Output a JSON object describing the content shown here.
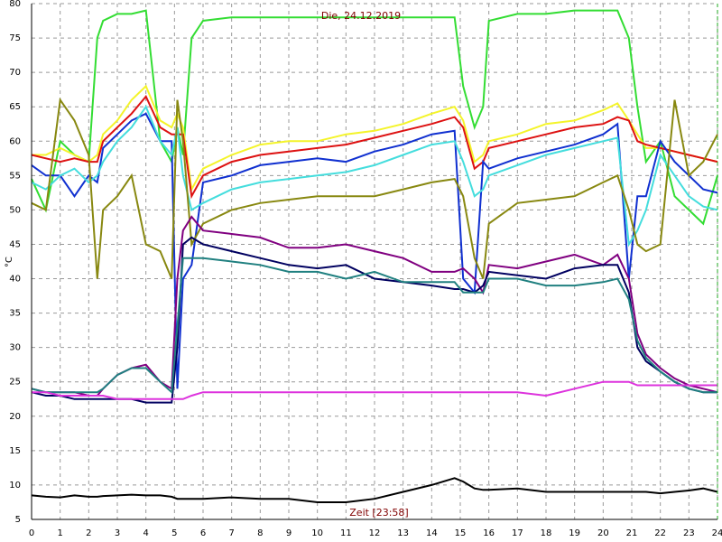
{
  "chart_data": {
    "type": "line",
    "title": "Die, 24.12.2019",
    "x_label": "Zeit [23:58]",
    "y_label": "°C",
    "x": [
      0,
      0.5,
      1,
      1.5,
      2,
      2.3,
      2.5,
      3,
      3.5,
      4,
      4.5,
      4.9,
      5.1,
      5.3,
      5.6,
      6,
      7,
      8,
      9,
      10,
      11,
      12,
      13,
      14,
      14.8,
      15.1,
      15.5,
      15.8,
      16,
      17,
      18,
      19,
      20,
      20.5,
      20.9,
      21.2,
      21.5,
      22,
      22.5,
      23,
      23.5,
      24
    ],
    "xlim": [
      0,
      24
    ],
    "xticks": [
      0,
      1,
      2,
      3,
      4,
      5,
      6,
      7,
      8,
      9,
      10,
      11,
      12,
      13,
      14,
      15,
      16,
      17,
      18,
      19,
      20,
      21,
      22,
      23,
      24
    ],
    "ylim": [
      5,
      80
    ],
    "yticks": [
      5,
      10,
      15,
      20,
      25,
      30,
      35,
      40,
      45,
      50,
      55,
      60,
      65,
      70,
      75,
      80
    ],
    "grid": true,
    "series": [
      {
        "color": "#33dd33",
        "values": [
          54.5,
          50,
          60,
          58,
          57,
          75,
          77.5,
          78.5,
          78.5,
          79,
          60,
          57,
          62,
          58,
          75,
          77.5,
          78,
          78,
          78,
          78,
          78,
          78,
          78,
          78,
          78,
          68,
          62,
          65,
          77.5,
          78.5,
          78.5,
          79,
          79,
          79,
          75,
          65,
          57,
          60,
          52,
          50,
          48,
          55
        ]
      },
      {
        "color": "#f4f42a",
        "values": [
          58,
          58,
          59,
          58,
          57,
          58,
          61,
          63,
          66,
          68,
          63,
          62,
          64,
          62,
          53,
          56,
          58,
          59.5,
          60,
          60,
          61,
          61.5,
          62.5,
          64,
          65,
          63,
          57,
          58,
          60,
          61,
          62.5,
          63,
          64.5,
          65.5,
          63,
          61,
          59,
          59,
          58.5,
          58,
          57.5,
          57
        ]
      },
      {
        "color": "#dd1111",
        "values": [
          58,
          57.5,
          57,
          57.5,
          57,
          57,
          60,
          62,
          64,
          66.5,
          62,
          61,
          61,
          61,
          52,
          55,
          57,
          58,
          58.5,
          59,
          59.5,
          60.5,
          61.5,
          62.5,
          63.5,
          62,
          56,
          57,
          59,
          60,
          61,
          62,
          62.5,
          63.5,
          63,
          60,
          59.5,
          59,
          58.5,
          58,
          57.5,
          57
        ]
      },
      {
        "color": "#1030d0",
        "values": [
          56.5,
          55,
          55,
          52,
          55,
          54,
          59,
          61,
          63,
          64,
          60,
          60,
          24,
          40,
          42,
          54,
          55,
          56.5,
          57,
          57.5,
          57,
          58.5,
          59.5,
          61,
          61.5,
          40,
          38,
          57,
          56,
          57.5,
          58.5,
          59.5,
          61,
          62.5,
          40,
          52,
          52,
          60,
          57,
          55,
          53,
          52.5
        ]
      },
      {
        "color": "#44dddd",
        "values": [
          54,
          53,
          55,
          56,
          54,
          55,
          57,
          60,
          62,
          65,
          60,
          58,
          62,
          55,
          50,
          51,
          53,
          54,
          54.5,
          55,
          55.5,
          56.5,
          58,
          59.5,
          60,
          57,
          52,
          53,
          55,
          56.5,
          58,
          59,
          60,
          60.5,
          45,
          47,
          50,
          58,
          55,
          52,
          50.5,
          50
        ]
      },
      {
        "color": "#888810",
        "values": [
          51,
          50,
          66,
          63,
          58,
          40,
          50,
          52,
          55,
          45,
          44,
          40,
          66,
          60,
          45,
          48,
          50,
          51,
          51.5,
          52,
          52,
          52,
          53,
          54,
          54.5,
          52,
          43,
          40,
          48,
          51,
          51.5,
          52,
          54,
          55,
          50,
          45,
          44,
          45,
          66,
          55,
          57,
          61
        ]
      },
      {
        "color": "#800080",
        "values": [
          24,
          23.5,
          23.5,
          23.5,
          23,
          23,
          24,
          26,
          27,
          27.5,
          25,
          24,
          40,
          47,
          49,
          47,
          46.5,
          46,
          44.5,
          44.5,
          45,
          44,
          43,
          41,
          41,
          41.5,
          40,
          38,
          42,
          41.5,
          42.5,
          43.5,
          42,
          43.5,
          40,
          32,
          29,
          27,
          25.5,
          24.5,
          24,
          23.5
        ]
      },
      {
        "color": "#000060",
        "values": [
          23.5,
          23,
          23,
          22.5,
          22.5,
          22.5,
          22.5,
          22.5,
          22.5,
          22,
          22,
          22,
          30,
          45,
          46,
          45,
          44,
          43,
          42,
          41.5,
          42,
          40,
          39.5,
          39,
          38.5,
          38.5,
          38,
          39,
          41,
          40.5,
          40,
          41.5,
          42,
          42,
          38,
          30,
          28,
          26.5,
          25,
          24,
          23.5,
          23.5
        ]
      },
      {
        "color": "#208080",
        "values": [
          24,
          23.5,
          23.5,
          23.5,
          23.5,
          23.5,
          24,
          26,
          27,
          27,
          25,
          23.5,
          33,
          43,
          43,
          43,
          42.5,
          42,
          41,
          41,
          40,
          41,
          39.5,
          39.5,
          39.5,
          38,
          38,
          38,
          40,
          40,
          39,
          39,
          39.5,
          40,
          37,
          31,
          28.5,
          26.5,
          25,
          24,
          23.5,
          23.5
        ]
      },
      {
        "color": "#dd33dd",
        "values": [
          23.5,
          23.5,
          23,
          23,
          23,
          23,
          23,
          22.5,
          22.5,
          22.5,
          22.5,
          22.5,
          22.5,
          22.5,
          23,
          23.5,
          23.5,
          23.5,
          23.5,
          23.5,
          23.5,
          23.5,
          23.5,
          23.5,
          23.5,
          23.5,
          23.5,
          23.5,
          23.5,
          23.5,
          23,
          24,
          25,
          25,
          25,
          24.5,
          24.5,
          24.5,
          24.5,
          24.5,
          24.5,
          24.5
        ]
      },
      {
        "color": "#000000",
        "values": [
          8.5,
          8.3,
          8.2,
          8.5,
          8.3,
          8.3,
          8.4,
          8.5,
          8.6,
          8.5,
          8.5,
          8.3,
          8,
          8,
          8,
          8,
          8.2,
          8,
          8,
          7.5,
          7.5,
          8,
          9,
          10,
          11,
          10.5,
          9.5,
          9.3,
          9.3,
          9.5,
          9,
          9,
          9,
          9,
          9,
          9,
          9,
          8.8,
          9,
          9.2,
          9.5,
          9
        ]
      }
    ]
  }
}
